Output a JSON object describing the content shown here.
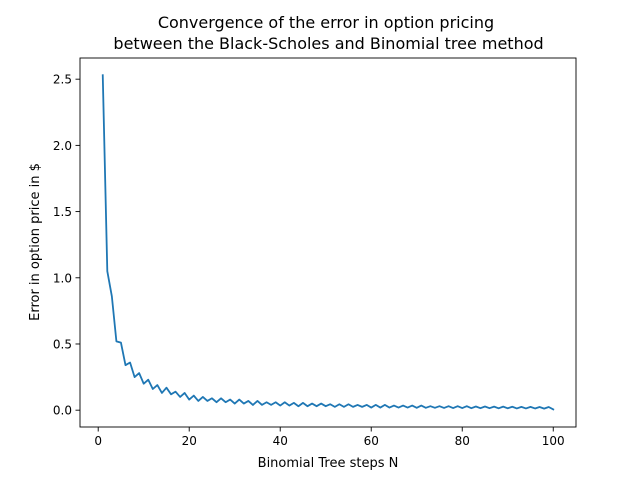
{
  "chart_data": {
    "type": "line",
    "title": "Convergence of the error in option pricing\n between the Black-Scholes and Binomial tree method",
    "title_lines": [
      "Convergence of the error in option pricing",
      " between the Black-Scholes and Binomial tree method"
    ],
    "xlabel": "Binomial Tree steps N",
    "ylabel": "Error in option price in $",
    "xlim": [
      -4.0,
      105.0
    ],
    "ylim": [
      -0.127,
      2.66
    ],
    "xticks": [
      0,
      20,
      40,
      60,
      80,
      100
    ],
    "xtick_labels": [
      "0",
      "20",
      "40",
      "60",
      "80",
      "100"
    ],
    "yticks": [
      0.0,
      0.5,
      1.0,
      1.5,
      2.0,
      2.5
    ],
    "ytick_labels": [
      "0.0",
      "0.5",
      "1.0",
      "1.5",
      "2.0",
      "2.5"
    ],
    "grid": false,
    "series": [
      {
        "color": "#1f77b4",
        "x": [
          1,
          2,
          3,
          4,
          5,
          6,
          7,
          8,
          9,
          10,
          11,
          12,
          13,
          14,
          15,
          16,
          17,
          18,
          19,
          20,
          21,
          22,
          23,
          24,
          25,
          26,
          27,
          28,
          29,
          30,
          31,
          32,
          33,
          34,
          35,
          36,
          37,
          38,
          39,
          40,
          41,
          42,
          43,
          44,
          45,
          46,
          47,
          48,
          49,
          50,
          51,
          52,
          53,
          54,
          55,
          56,
          57,
          58,
          59,
          60,
          61,
          62,
          63,
          64,
          65,
          66,
          67,
          68,
          69,
          70,
          71,
          72,
          73,
          74,
          75,
          76,
          77,
          78,
          79,
          80,
          81,
          82,
          83,
          84,
          85,
          86,
          87,
          88,
          89,
          90,
          91,
          92,
          93,
          94,
          95,
          96,
          97,
          98,
          99,
          100
        ],
        "y": [
          2.53,
          1.05,
          0.86,
          0.52,
          0.51,
          0.34,
          0.36,
          0.25,
          0.28,
          0.2,
          0.23,
          0.16,
          0.19,
          0.13,
          0.17,
          0.12,
          0.14,
          0.1,
          0.13,
          0.08,
          0.11,
          0.07,
          0.1,
          0.07,
          0.09,
          0.06,
          0.09,
          0.06,
          0.08,
          0.05,
          0.08,
          0.05,
          0.07,
          0.04,
          0.07,
          0.04,
          0.06,
          0.04,
          0.06,
          0.035,
          0.06,
          0.035,
          0.055,
          0.03,
          0.055,
          0.03,
          0.05,
          0.03,
          0.05,
          0.03,
          0.045,
          0.025,
          0.045,
          0.025,
          0.045,
          0.025,
          0.04,
          0.025,
          0.04,
          0.02,
          0.04,
          0.02,
          0.04,
          0.02,
          0.035,
          0.02,
          0.035,
          0.02,
          0.035,
          0.018,
          0.035,
          0.018,
          0.03,
          0.018,
          0.03,
          0.017,
          0.03,
          0.016,
          0.03,
          0.016,
          0.03,
          0.015,
          0.028,
          0.015,
          0.028,
          0.015,
          0.027,
          0.014,
          0.027,
          0.014,
          0.026,
          0.013,
          0.025,
          0.013,
          0.025,
          0.013,
          0.024,
          0.012,
          0.024,
          0.006
        ]
      }
    ]
  }
}
